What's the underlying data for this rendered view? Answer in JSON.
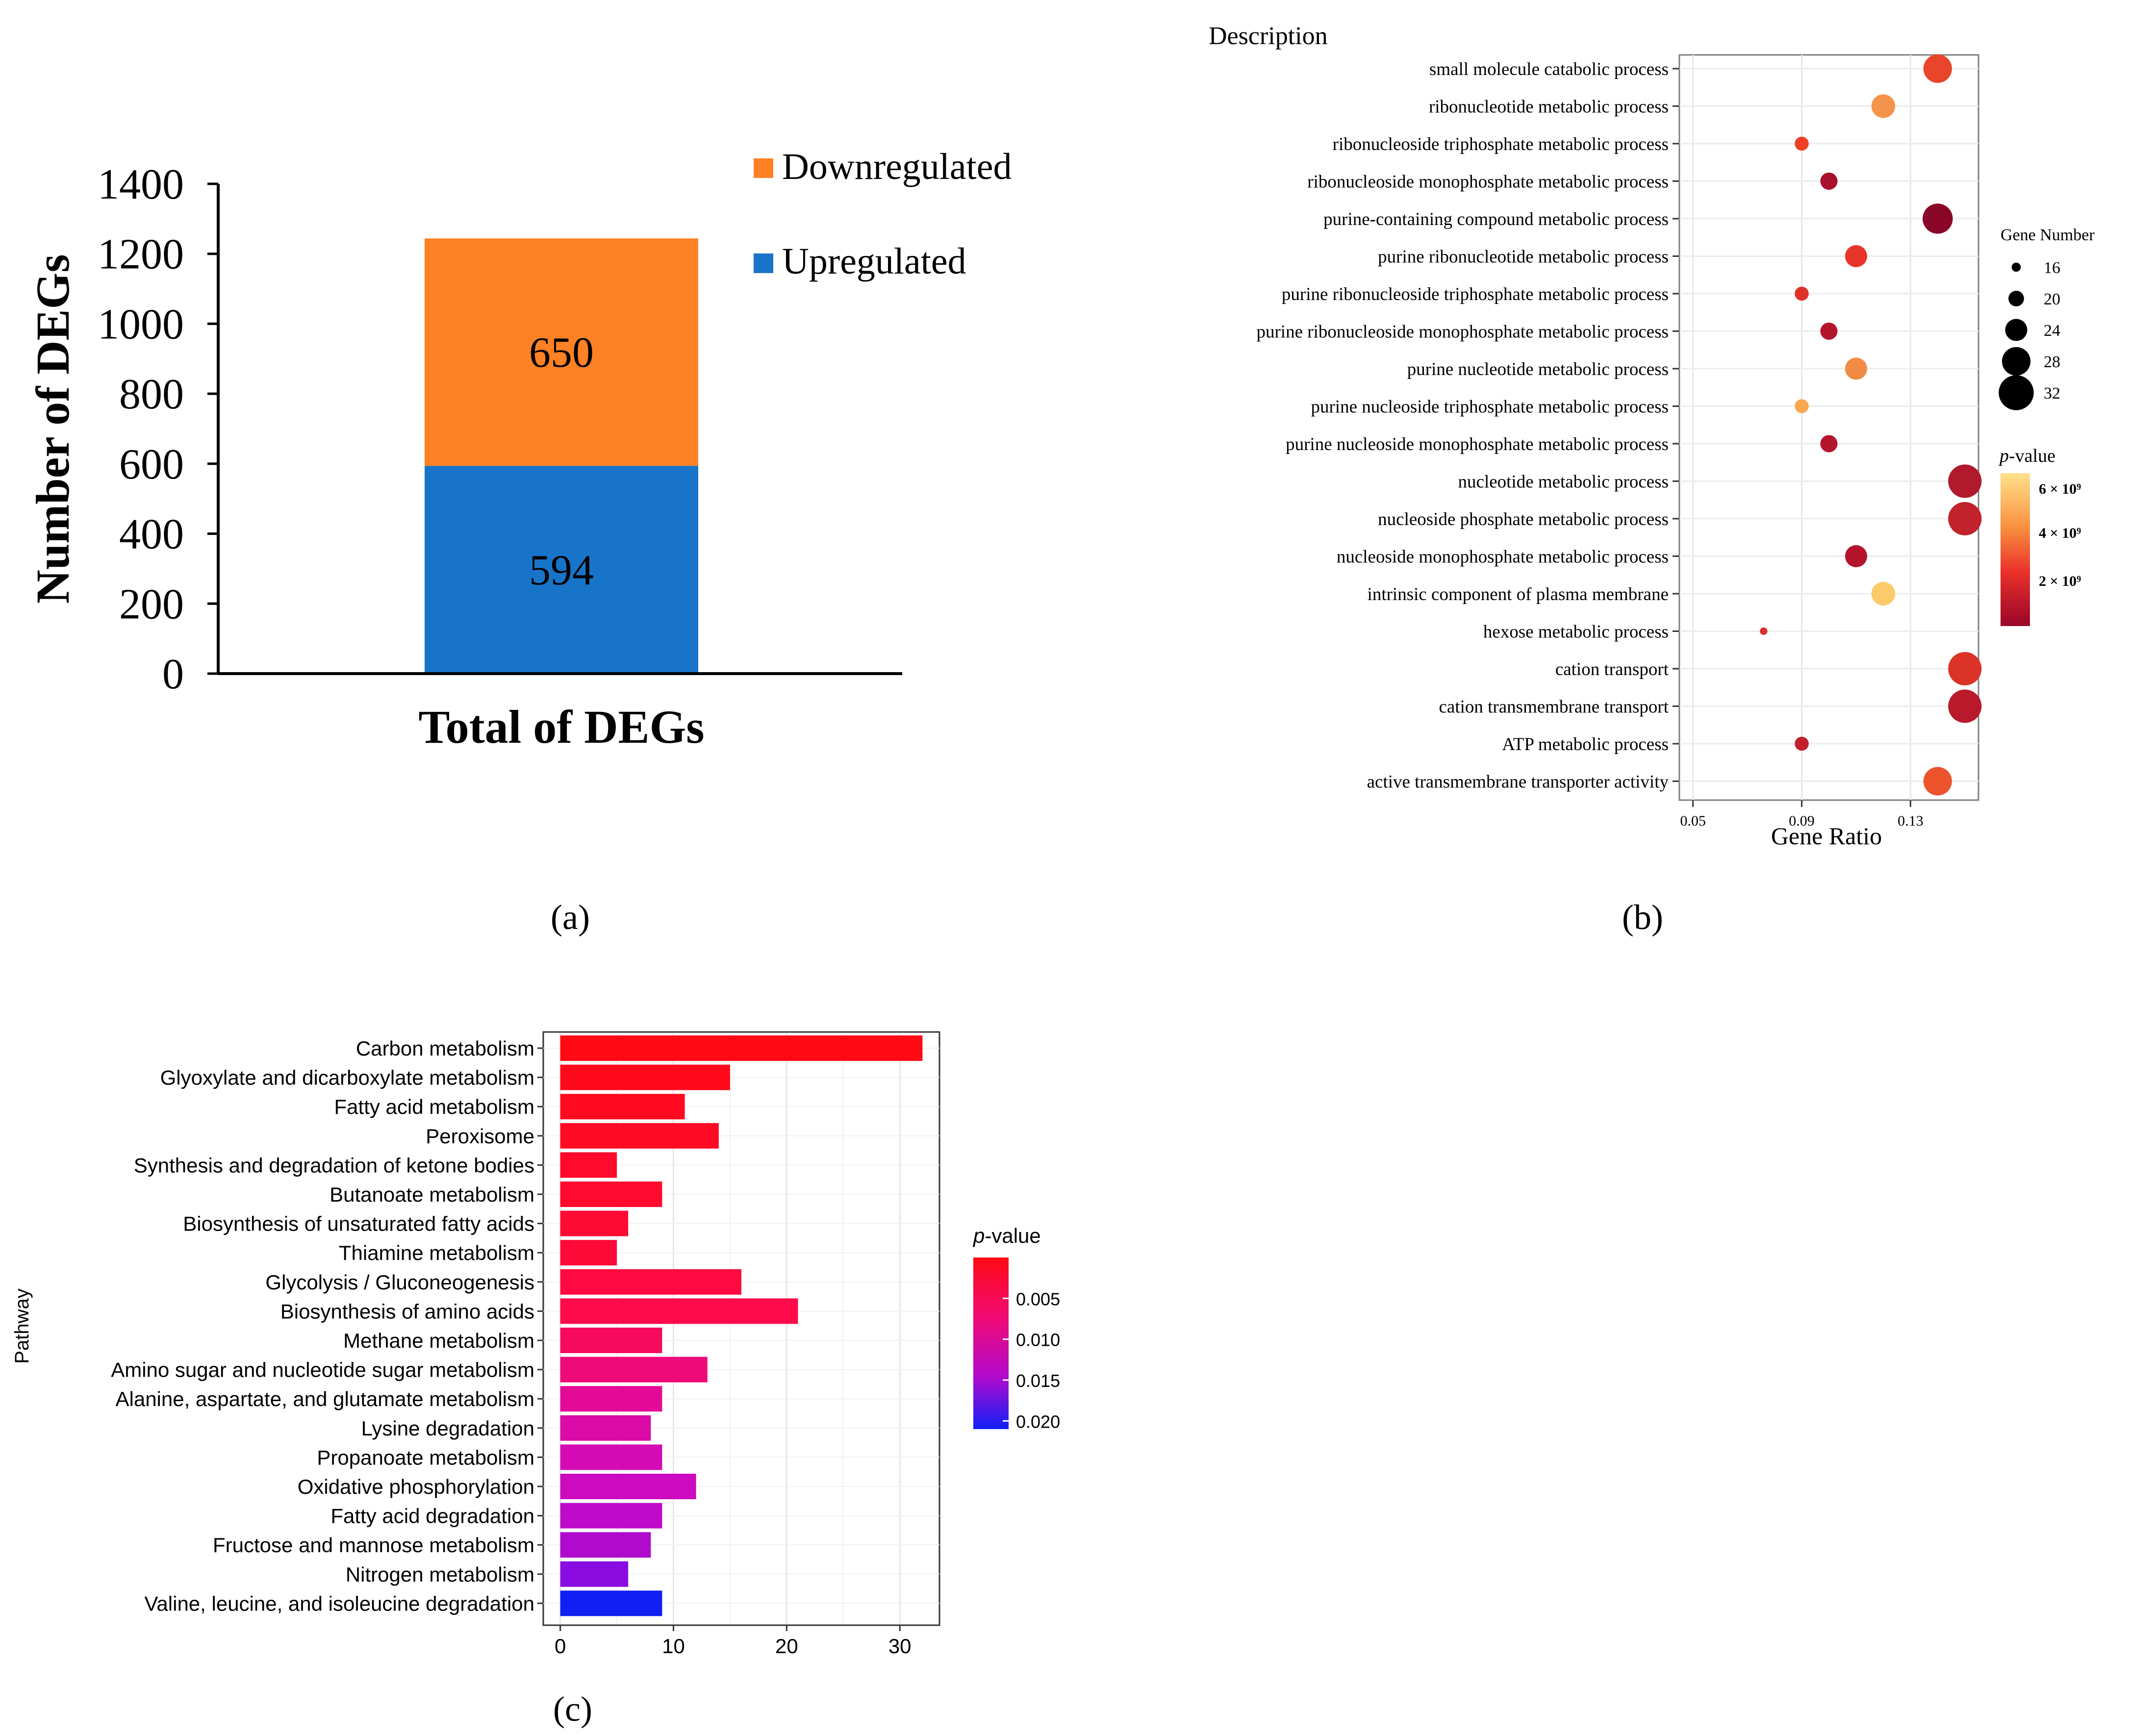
{
  "chart_data": [
    {
      "panel": "a",
      "type": "bar",
      "stacked": true,
      "caption": "(a)",
      "xlabel": "Total of DEGs",
      "ylabel": "Number of DEGs",
      "ylim": [
        0,
        1400
      ],
      "yticks": [
        0,
        200,
        400,
        600,
        800,
        1000,
        1200,
        1400
      ],
      "categories": [
        "Total of DEGs"
      ],
      "series": [
        {
          "name": "Upregulated",
          "values": [
            594
          ],
          "color": "#1874C8"
        },
        {
          "name": "Downregulated",
          "values": [
            650
          ],
          "color": "#FF8125"
        }
      ],
      "legend": [
        "Downregulated",
        "Upregulated"
      ],
      "legend_position": "top-right"
    },
    {
      "panel": "b",
      "type": "scatter",
      "caption": "(b)",
      "title": "Description",
      "xlabel": "Gene Ratio",
      "xlim": [
        0.045,
        0.155
      ],
      "xticks": [
        0.05,
        0.09,
        0.13
      ],
      "xtick_labels": [
        "0.05",
        "0.09",
        "0.13"
      ],
      "grid": true,
      "size_legend": {
        "title": "Gene Number",
        "values": [
          16,
          20,
          24,
          28,
          32
        ]
      },
      "color_legend": {
        "title_prefix": "p",
        "title_suffix": "-value",
        "labels": [
          "6 × 10⁹",
          "4 × 10⁹",
          "2 × 10⁹"
        ]
      },
      "terms": [
        {
          "label": "small molecule catabolic process",
          "x": 0.14,
          "size": 28,
          "color": "#E8452A"
        },
        {
          "label": "ribonucleotide metabolic process",
          "x": 0.12,
          "size": 25,
          "color": "#F5934A"
        },
        {
          "label": "ribonucleoside triphosphate metabolic process",
          "x": 0.09,
          "size": 19,
          "color": "#EE4025"
        },
        {
          "label": "ribonucleoside monophosphate metabolic process",
          "x": 0.1,
          "size": 21,
          "color": "#A8102C"
        },
        {
          "label": "purine-containing compound metabolic process",
          "x": 0.14,
          "size": 29,
          "color": "#8A0628"
        },
        {
          "label": "purine ribonucleotide metabolic process",
          "x": 0.11,
          "size": 24,
          "color": "#E8352A"
        },
        {
          "label": "purine ribonucleoside triphosphate metabolic process",
          "x": 0.09,
          "size": 19,
          "color": "#DE3128"
        },
        {
          "label": "purine ribonucleoside monophosphate metabolic process",
          "x": 0.1,
          "size": 21,
          "color": "#B5152C"
        },
        {
          "label": "purine nucleotide metabolic process",
          "x": 0.11,
          "size": 24,
          "color": "#F28B45"
        },
        {
          "label": "purine nucleoside triphosphate metabolic process",
          "x": 0.09,
          "size": 19,
          "color": "#F7A850"
        },
        {
          "label": "purine nucleoside monophosphate metabolic process",
          "x": 0.1,
          "size": 21,
          "color": "#B5152C"
        },
        {
          "label": "nucleotide metabolic process",
          "x": 0.15,
          "size": 31,
          "color": "#B01A2C"
        },
        {
          "label": "nucleoside phosphate metabolic process",
          "x": 0.15,
          "size": 31,
          "color": "#C2222C"
        },
        {
          "label": "nucleoside monophosphate metabolic process",
          "x": 0.11,
          "size": 24,
          "color": "#B5152C"
        },
        {
          "label": "intrinsic component of plasma membrane",
          "x": 0.12,
          "size": 25,
          "color": "#FBCB6A"
        },
        {
          "label": "hexose metabolic process",
          "x": 0.076,
          "size": 15,
          "color": "#D8302A"
        },
        {
          "label": "cation transport",
          "x": 0.15,
          "size": 31,
          "color": "#DC3328"
        },
        {
          "label": "cation transmembrane transport",
          "x": 0.15,
          "size": 31,
          "color": "#B81A2C"
        },
        {
          "label": "ATP metabolic process",
          "x": 0.09,
          "size": 19,
          "color": "#C1202C"
        },
        {
          "label": "active transmembrane transporter activity",
          "x": 0.14,
          "size": 28,
          "color": "#EC532C"
        }
      ]
    },
    {
      "panel": "c",
      "type": "bar",
      "orientation": "horizontal",
      "caption": "(c)",
      "ylabel": "Pathway",
      "xlim": [
        -1.5,
        33.5
      ],
      "xticks": [
        0,
        10,
        20,
        30
      ],
      "grid": true,
      "color_legend": {
        "title_prefix": "p",
        "title_suffix": "-value",
        "labels": [
          "0.005",
          "0.010",
          "0.015",
          "0.020"
        ],
        "domain": [
          0.0,
          0.021
        ]
      },
      "categories": [
        "Carbon metabolism",
        "Glyoxylate and dicarboxylate metabolism",
        "Fatty acid metabolism",
        "Peroxisome",
        "Synthesis and degradation of ketone bodies",
        "Butanoate metabolism",
        "Biosynthesis of unsaturated fatty acids",
        "Thiamine metabolism",
        "Glycolysis / Gluconeogenesis",
        "Biosynthesis of amino acids",
        "Methane metabolism",
        "Amino sugar and nucleotide sugar metabolism",
        "Alanine, aspartate, and glutamate metabolism",
        "Lysine degradation",
        "Propanoate metabolism",
        "Oxidative phosphorylation",
        "Fatty acid degradation",
        "Fructose and mannose metabolism",
        "Nitrogen metabolism",
        "Valine, leucine, and isoleucine degradation"
      ],
      "values": [
        32,
        15,
        11,
        14,
        5,
        9,
        6,
        5,
        16,
        21,
        9,
        13,
        9,
        8,
        9,
        12,
        9,
        8,
        6,
        9
      ],
      "colors": [
        "#FF0A14",
        "#FF0A1C",
        "#FF0A20",
        "#FF0A24",
        "#FF0A2A",
        "#FF0A2E",
        "#FF0A32",
        "#FF0A38",
        "#FF0A40",
        "#FF0A4A",
        "#F50A5C",
        "#EE0A78",
        "#E30A98",
        "#DC0AA6",
        "#D40AB4",
        "#CC0AC0",
        "#C00ACA",
        "#B00ACE",
        "#8A0CE0",
        "#1020F2"
      ]
    }
  ]
}
